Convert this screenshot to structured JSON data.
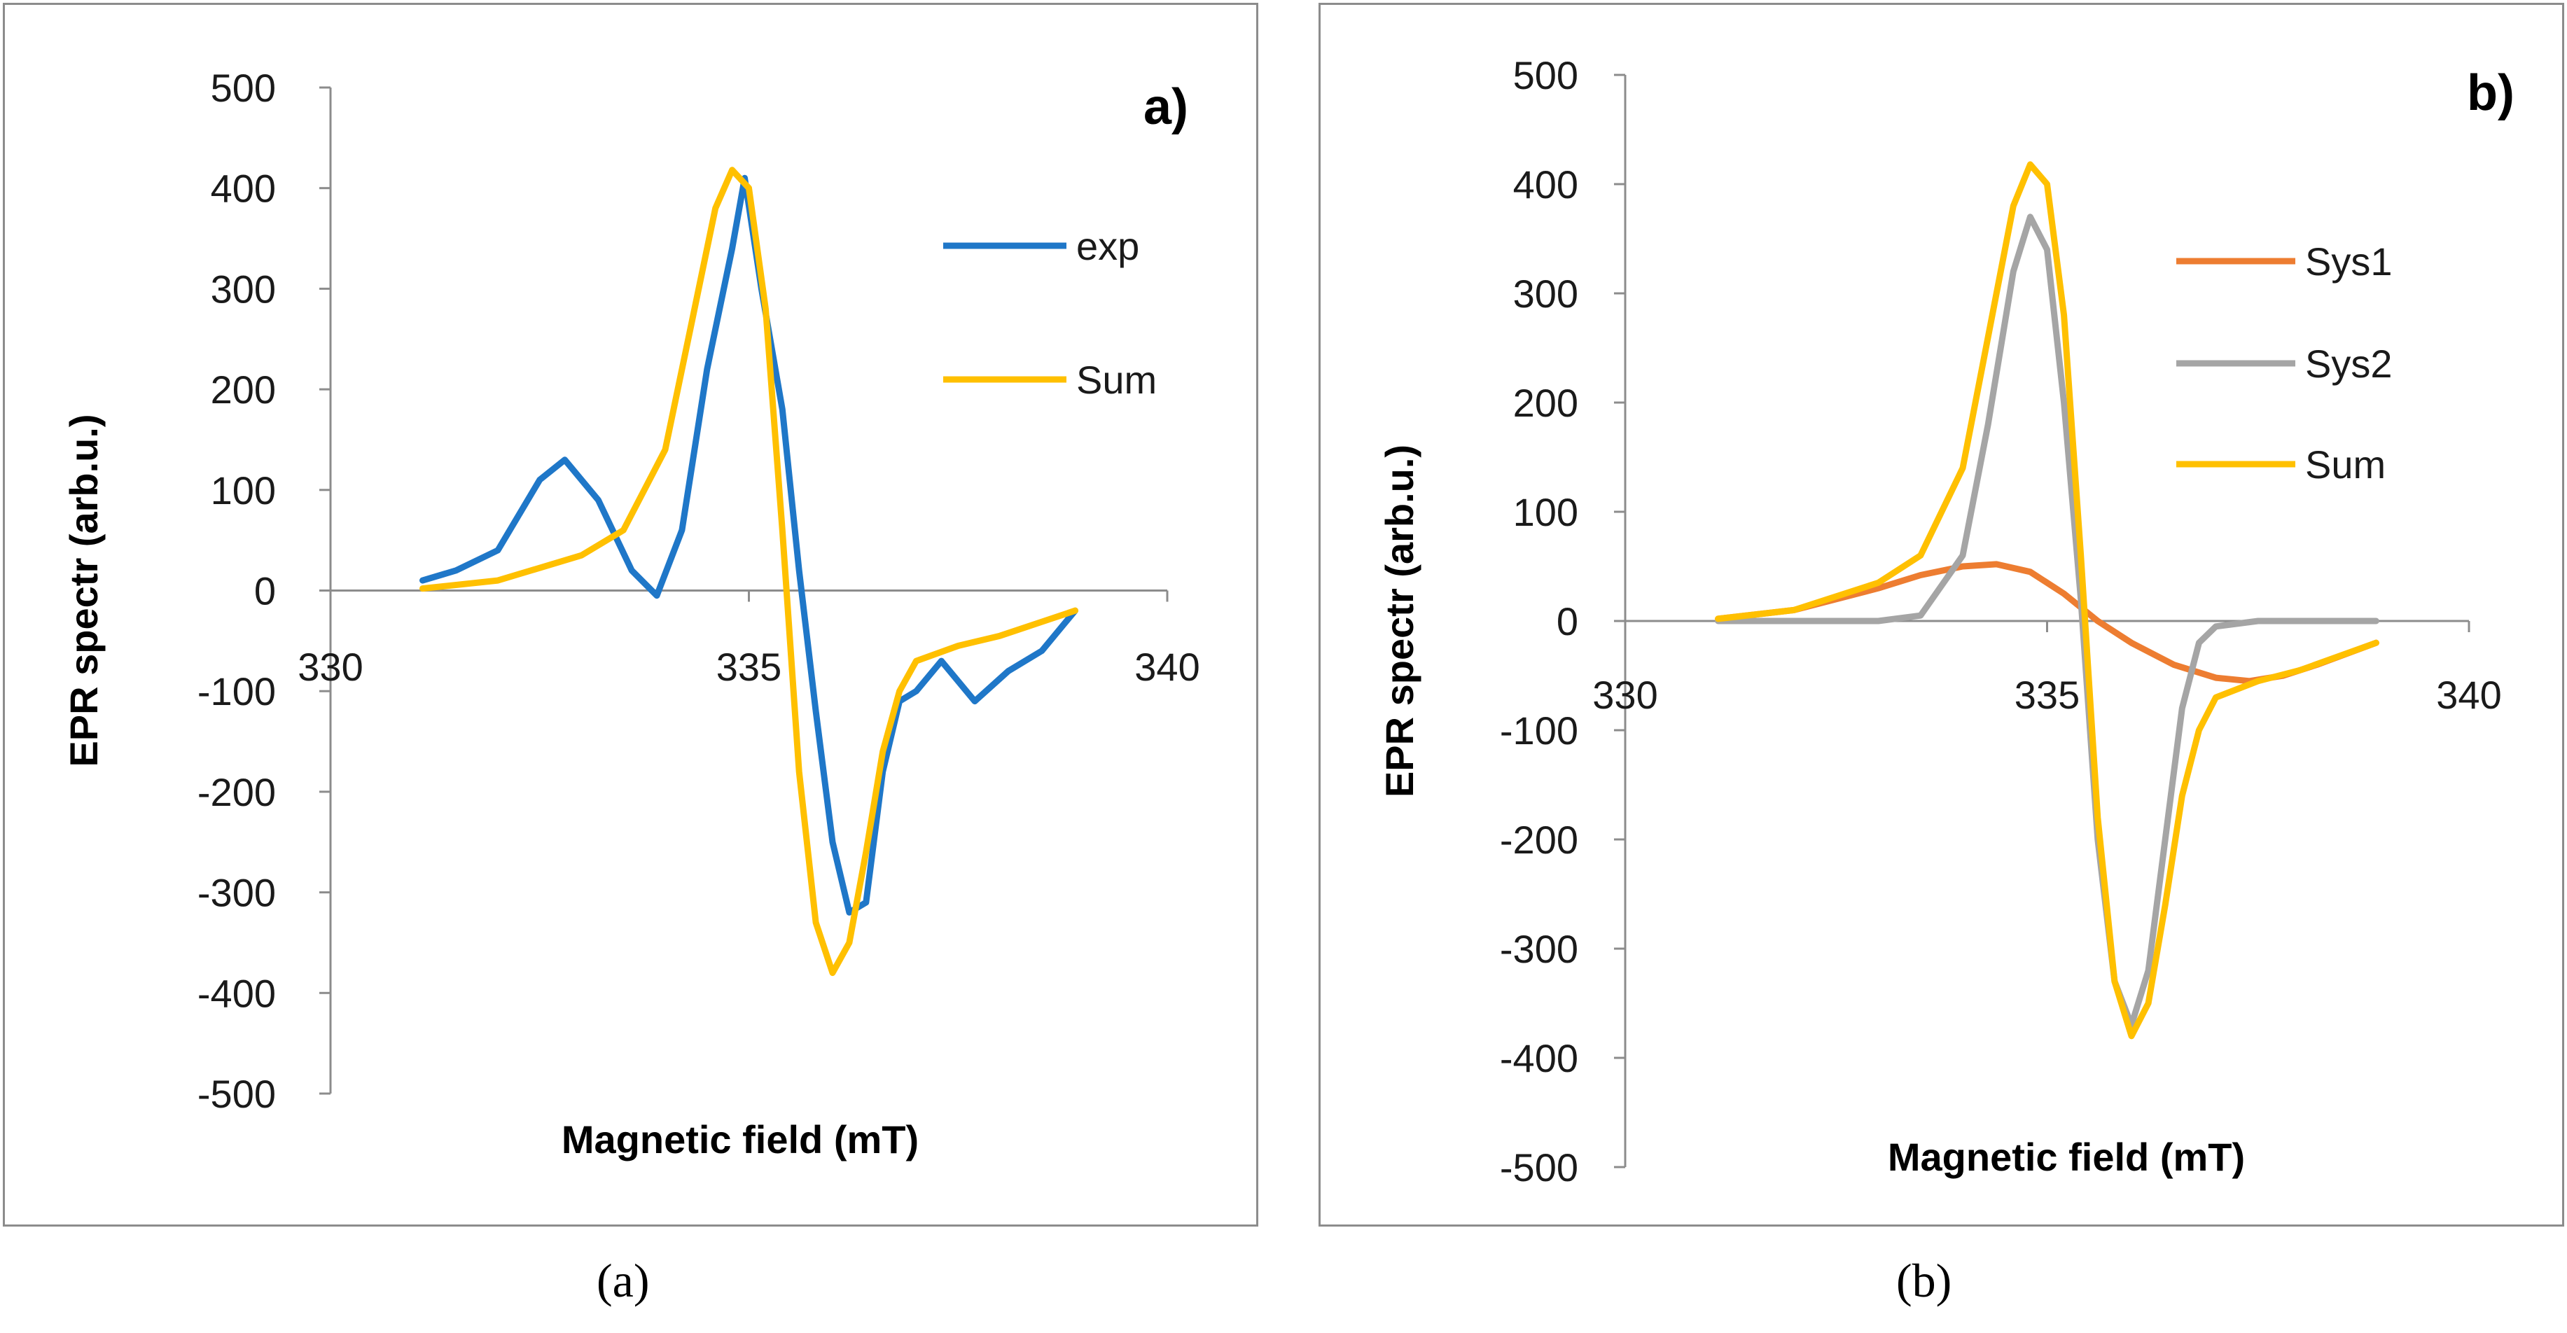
{
  "chart_data": [
    {
      "type": "line",
      "panel_label": "a)",
      "caption": "(a)",
      "title": "",
      "xlabel": "Magnetic field (mT)",
      "ylabel": "EPR spectr (arb.u.)",
      "xlim": [
        330,
        340
      ],
      "ylim": [
        -500,
        500
      ],
      "xticks": [
        "330",
        "335",
        "340"
      ],
      "yticks": [
        "500",
        "400",
        "300",
        "200",
        "100",
        "0",
        "-100",
        "-200",
        "-300",
        "-400",
        "-500"
      ],
      "legend_position": "top-right",
      "series": [
        {
          "name": "exp",
          "color": "#1f77c8",
          "x": [
            331.1,
            331.5,
            332.0,
            332.5,
            332.8,
            333.2,
            333.6,
            333.9,
            334.2,
            334.5,
            334.8,
            334.95,
            335.15,
            335.4,
            335.6,
            335.8,
            336.0,
            336.2,
            336.4,
            336.6,
            336.8,
            337.0,
            337.3,
            337.7,
            338.1,
            338.5,
            338.9
          ],
          "y": [
            10,
            20,
            40,
            110,
            130,
            90,
            20,
            -5,
            60,
            220,
            340,
            410,
            300,
            180,
            20,
            -120,
            -250,
            -320,
            -310,
            -180,
            -110,
            -100,
            -70,
            -110,
            -80,
            -60,
            -20
          ]
        },
        {
          "name": "Sum",
          "color": "#ffc000",
          "x": [
            331.1,
            332.0,
            333.0,
            333.5,
            334.0,
            334.3,
            334.6,
            334.8,
            335.0,
            335.2,
            335.4,
            335.6,
            335.8,
            336.0,
            336.2,
            336.4,
            336.6,
            336.8,
            337.0,
            337.5,
            338.0,
            338.9
          ],
          "y": [
            2,
            10,
            35,
            60,
            140,
            260,
            380,
            418,
            400,
            280,
            60,
            -180,
            -330,
            -380,
            -350,
            -260,
            -160,
            -100,
            -70,
            -55,
            -45,
            -20
          ]
        }
      ]
    },
    {
      "type": "line",
      "panel_label": "b)",
      "caption": "(b)",
      "title": "",
      "xlabel": "Magnetic field (mT)",
      "ylabel": "EPR spectr (arb.u.)",
      "xlim": [
        330,
        340
      ],
      "ylim": [
        -500,
        500
      ],
      "xticks": [
        "330",
        "335",
        "340"
      ],
      "yticks": [
        "500",
        "400",
        "300",
        "200",
        "100",
        "0",
        "-100",
        "-200",
        "-300",
        "-400",
        "-500"
      ],
      "legend_position": "top-right",
      "series": [
        {
          "name": "Sys1",
          "color": "#ed7d31",
          "x": [
            331.1,
            332.0,
            333.0,
            333.5,
            334.0,
            334.4,
            334.8,
            335.2,
            335.6,
            336.0,
            336.5,
            337.0,
            337.4,
            337.8,
            338.2,
            338.9
          ],
          "y": [
            2,
            10,
            30,
            42,
            50,
            52,
            45,
            25,
            0,
            -20,
            -40,
            -52,
            -55,
            -50,
            -40,
            -20
          ]
        },
        {
          "name": "Sys2",
          "color": "#a5a5a5",
          "x": [
            331.1,
            333.0,
            333.5,
            334.0,
            334.3,
            334.6,
            334.8,
            335.0,
            335.2,
            335.4,
            335.6,
            335.8,
            336.0,
            336.2,
            336.4,
            336.6,
            336.8,
            337.0,
            337.5,
            338.9
          ],
          "y": [
            0,
            0,
            5,
            60,
            180,
            320,
            370,
            340,
            200,
            20,
            -200,
            -330,
            -370,
            -320,
            -200,
            -80,
            -20,
            -5,
            0,
            0
          ]
        },
        {
          "name": "Sum",
          "color": "#ffc000",
          "x": [
            331.1,
            332.0,
            333.0,
            333.5,
            334.0,
            334.3,
            334.6,
            334.8,
            335.0,
            335.2,
            335.4,
            335.6,
            335.8,
            336.0,
            336.2,
            336.4,
            336.6,
            336.8,
            337.0,
            337.5,
            338.0,
            338.9
          ],
          "y": [
            2,
            10,
            35,
            60,
            140,
            260,
            380,
            418,
            400,
            280,
            60,
            -180,
            -330,
            -380,
            -350,
            -260,
            -160,
            -100,
            -70,
            -55,
            -45,
            -20
          ]
        }
      ]
    }
  ]
}
